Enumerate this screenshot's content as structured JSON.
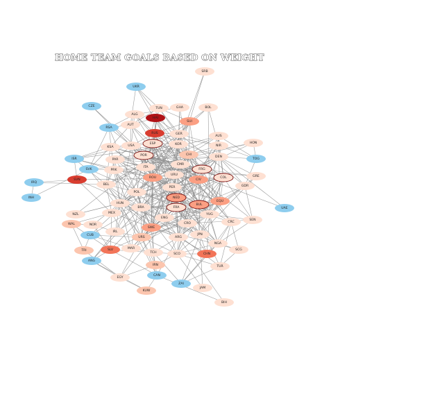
{
  "title": "HOME TEAM GOALS BASED ON WEIGHT",
  "colors": {
    "blue": "#8ecdee",
    "c0": "#fee0d2",
    "c1": "#fcc5ae",
    "c2": "#fb9f83",
    "c3": "#f27458",
    "c4": "#d93d30",
    "c5": "#b01217",
    "edge": "#8a8a8a"
  },
  "nodes": [
    {
      "id": "SRB",
      "c": "c0"
    },
    {
      "id": "UKR",
      "c": "blue"
    },
    {
      "id": "CZE",
      "c": "blue"
    },
    {
      "id": "TUN",
      "c": "c0"
    },
    {
      "id": "GHA",
      "c": "c0"
    },
    {
      "id": "BOL",
      "c": "c0"
    },
    {
      "id": "ALG",
      "c": "c0"
    },
    {
      "id": "HAI",
      "c": "c5"
    },
    {
      "id": "SUI",
      "c": "c2"
    },
    {
      "id": "AUT",
      "c": "c0"
    },
    {
      "id": "RSA",
      "c": "blue"
    },
    {
      "id": "RUS",
      "c": "c4"
    },
    {
      "id": "GER",
      "c": "c0"
    },
    {
      "id": "AUS",
      "c": "c0"
    },
    {
      "id": "HON",
      "c": "c0"
    },
    {
      "id": "KSA",
      "c": "c0"
    },
    {
      "id": "USA",
      "c": "c0"
    },
    {
      "id": "ESP",
      "c": "c0"
    },
    {
      "id": "KOR",
      "c": "c0"
    },
    {
      "id": "NIR",
      "c": "c0"
    },
    {
      "id": "ISR",
      "c": "blue"
    },
    {
      "id": "PAR",
      "c": "c0"
    },
    {
      "id": "POR",
      "c": "c0"
    },
    {
      "id": "CHI",
      "c": "c1"
    },
    {
      "id": "DEN",
      "c": "c0"
    },
    {
      "id": "TOG",
      "c": "blue"
    },
    {
      "id": "SVK",
      "c": "blue"
    },
    {
      "id": "PRK",
      "c": "c0"
    },
    {
      "id": "ITA",
      "c": "c0"
    },
    {
      "id": "CMR",
      "c": "c0"
    },
    {
      "id": "FRG",
      "c": "c0"
    },
    {
      "id": "GRE",
      "c": "c0"
    },
    {
      "id": "IRQ",
      "c": "blue"
    },
    {
      "id": "SVN",
      "c": "c4"
    },
    {
      "id": "BEL",
      "c": "c0"
    },
    {
      "id": "URU",
      "c": "c0"
    },
    {
      "id": "ROU",
      "c": "c2"
    },
    {
      "id": "CIV",
      "c": "c2"
    },
    {
      "id": "COL",
      "c": "c0"
    },
    {
      "id": "GDR",
      "c": "c0"
    },
    {
      "id": "INH",
      "c": "blue"
    },
    {
      "id": "PER",
      "c": "c0"
    },
    {
      "id": "POL",
      "c": "c0"
    },
    {
      "id": "NED",
      "c": "c2"
    },
    {
      "id": "HUN",
      "c": "c0"
    },
    {
      "id": "EQU",
      "c": "c2"
    },
    {
      "id": "BUL",
      "c": "c2"
    },
    {
      "id": "UAE",
      "c": "blue"
    },
    {
      "id": "NZL",
      "c": "c0"
    },
    {
      "id": "BRA",
      "c": "c0"
    },
    {
      "id": "FRA",
      "c": "c0"
    },
    {
      "id": "MEX",
      "c": "c0"
    },
    {
      "id": "YUG",
      "c": "c0"
    },
    {
      "id": "WAL",
      "c": "c1"
    },
    {
      "id": "ENG",
      "c": "c0"
    },
    {
      "id": "CRC",
      "c": "c0"
    },
    {
      "id": "SEN",
      "c": "c0"
    },
    {
      "id": "NOR",
      "c": "c0"
    },
    {
      "id": "CRO",
      "c": "c0"
    },
    {
      "id": "CUB",
      "c": "blue"
    },
    {
      "id": "SWE",
      "c": "c2"
    },
    {
      "id": "IRL",
      "c": "c0"
    },
    {
      "id": "JPN",
      "c": "c0"
    },
    {
      "id": "URS",
      "c": "c1"
    },
    {
      "id": "ARG",
      "c": "c0"
    },
    {
      "id": "NGA",
      "c": "c0"
    },
    {
      "id": "TRI",
      "c": "c1"
    },
    {
      "id": "SLV",
      "c": "c3"
    },
    {
      "id": "MAR",
      "c": "c0"
    },
    {
      "id": "SCG",
      "c": "c0"
    },
    {
      "id": "TCH",
      "c": "c0"
    },
    {
      "id": "SCO",
      "c": "c0"
    },
    {
      "id": "CHN",
      "c": "c3"
    },
    {
      "id": "ANG",
      "c": "blue"
    },
    {
      "id": "IRN",
      "c": "c1"
    },
    {
      "id": "TUR",
      "c": "c0"
    },
    {
      "id": "EGY",
      "c": "c0"
    },
    {
      "id": "CAN",
      "c": "blue"
    },
    {
      "id": "ZAI",
      "c": "blue"
    },
    {
      "id": "JAM",
      "c": "c0"
    },
    {
      "id": "KUW",
      "c": "c1"
    },
    {
      "id": "BIH",
      "c": "c0"
    }
  ],
  "outlined": [
    "ESP",
    "POR",
    "FRG",
    "COL",
    "NED",
    "FRA",
    "BUL"
  ]
}
